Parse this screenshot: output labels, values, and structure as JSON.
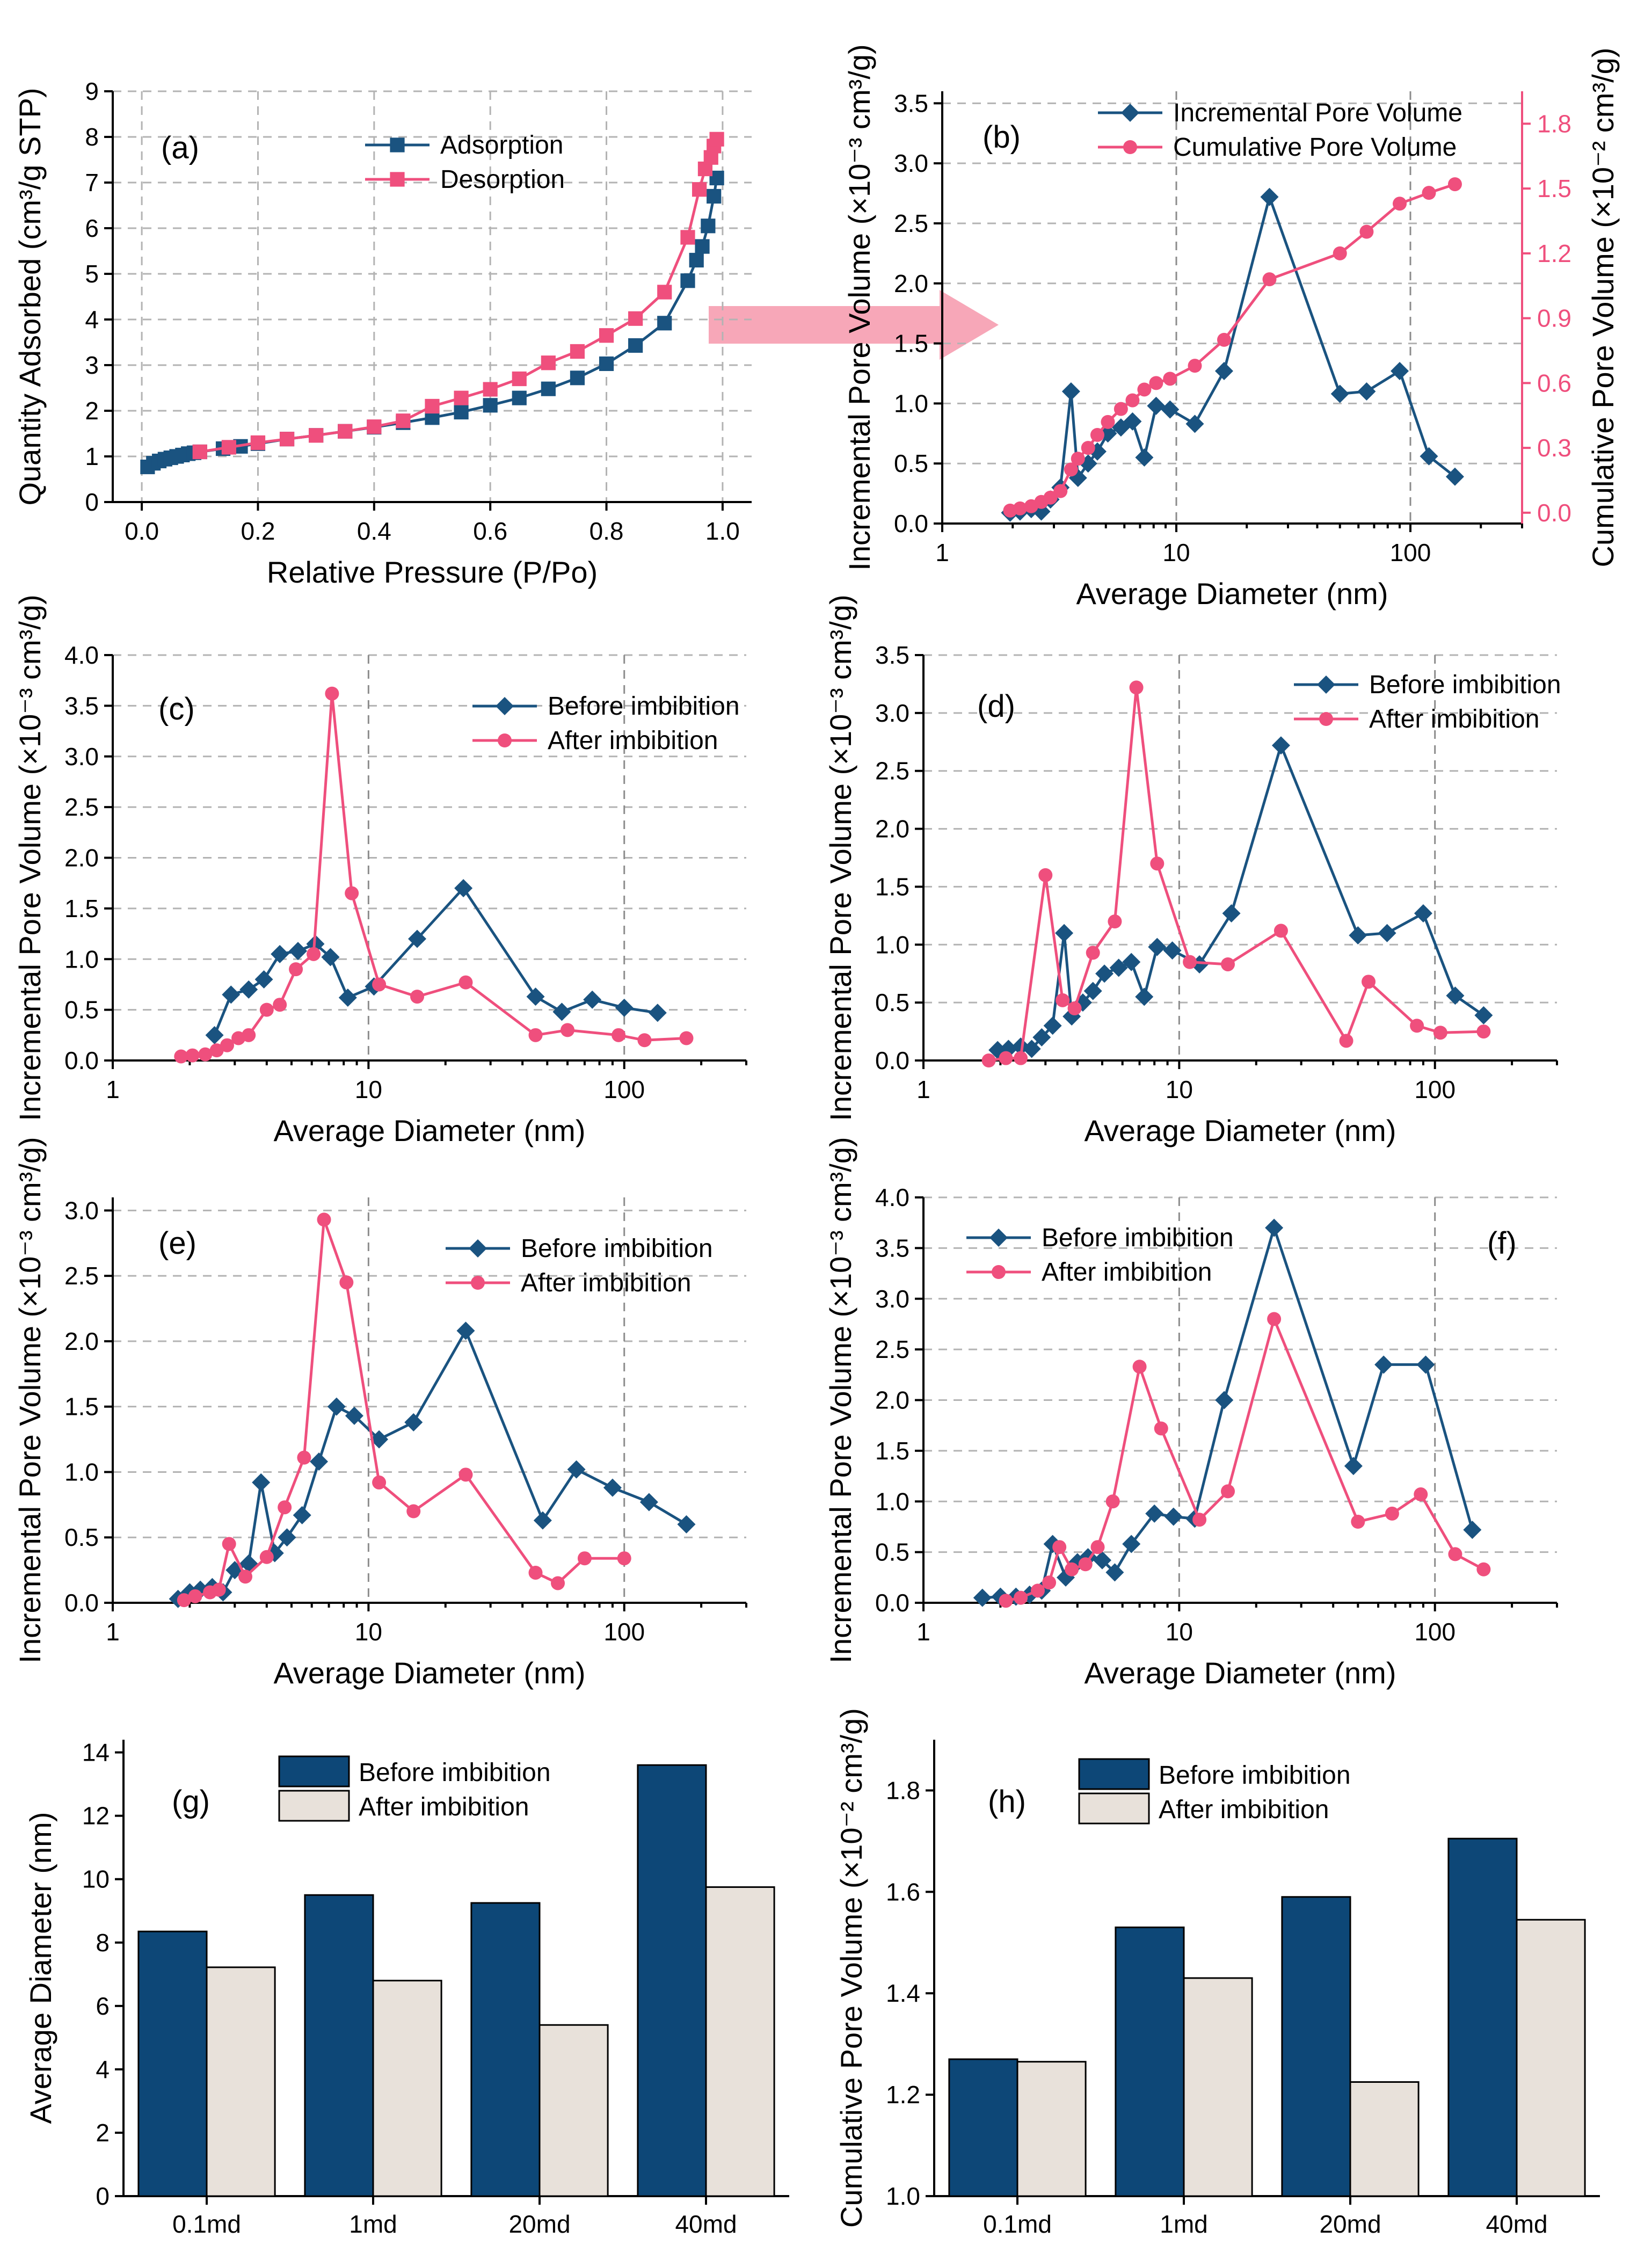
{
  "colors": {
    "blue": "#1a5380",
    "pink": "#ef4f7d",
    "bar_blue": "#0d4777",
    "bar_beige": "#e8e1da",
    "arrow": "#f7a7b8"
  },
  "chart_data": [
    {
      "id": "a",
      "type": "line",
      "label": "(a)",
      "xlabel": "Relative Pressure (P/Po)",
      "ylabel": "Quantity Adsorbed (cm³/g STP)",
      "xlim": [
        -0.05,
        1.05
      ],
      "ylim": [
        0,
        9
      ],
      "xticks": [
        0.0,
        0.2,
        0.4,
        0.6,
        0.8,
        1.0
      ],
      "xtick_labels": [
        "0.0",
        "0.2",
        "0.4",
        "0.6",
        "0.8",
        "1.0"
      ],
      "yticks": [
        0,
        1,
        2,
        3,
        4,
        5,
        6,
        7,
        8,
        9
      ],
      "ytick_labels": [
        "0",
        "1",
        "2",
        "3",
        "4",
        "5",
        "6",
        "7",
        "8",
        "9"
      ],
      "legend_position": "top-center",
      "series": [
        {
          "name": "Adsorption",
          "color": "blue",
          "marker": "square",
          "x": [
            0.01,
            0.02,
            0.03,
            0.04,
            0.05,
            0.06,
            0.07,
            0.08,
            0.09,
            0.1,
            0.14,
            0.17,
            0.2,
            0.25,
            0.3,
            0.35,
            0.4,
            0.45,
            0.5,
            0.55,
            0.6,
            0.65,
            0.7,
            0.75,
            0.8,
            0.85,
            0.9,
            0.94,
            0.955,
            0.965,
            0.975,
            0.985,
            0.99
          ],
          "y": [
            0.77,
            0.85,
            0.9,
            0.94,
            0.97,
            1.0,
            1.03,
            1.06,
            1.08,
            1.1,
            1.17,
            1.22,
            1.28,
            1.38,
            1.46,
            1.55,
            1.64,
            1.74,
            1.85,
            1.97,
            2.12,
            2.28,
            2.48,
            2.72,
            3.03,
            3.43,
            3.92,
            4.85,
            5.3,
            5.6,
            6.05,
            6.7,
            7.1
          ]
        },
        {
          "name": "Desorption",
          "color": "pink",
          "marker": "square",
          "x": [
            0.1,
            0.15,
            0.2,
            0.25,
            0.3,
            0.35,
            0.4,
            0.45,
            0.5,
            0.55,
            0.6,
            0.65,
            0.7,
            0.75,
            0.8,
            0.85,
            0.9,
            0.94,
            0.96,
            0.97,
            0.98,
            0.985,
            0.99
          ],
          "y": [
            1.1,
            1.2,
            1.3,
            1.38,
            1.46,
            1.55,
            1.65,
            1.78,
            2.1,
            2.28,
            2.47,
            2.7,
            3.05,
            3.3,
            3.65,
            4.02,
            4.6,
            5.8,
            6.85,
            7.3,
            7.55,
            7.8,
            7.95
          ]
        }
      ]
    },
    {
      "id": "b",
      "type": "line",
      "label": "(b)",
      "xlabel": "Average Diameter (nm)",
      "ylabel": "Incremental Pore Volume (×10⁻³ cm³/g)",
      "ylabel_right": "Cumulative Pore Volume (×10⁻² cm³/g)",
      "xscale": "log",
      "xlim": [
        1,
        300
      ],
      "ylim": [
        0,
        3.6
      ],
      "ylim_right": [
        -0.05,
        1.95
      ],
      "xticks": [
        1,
        10,
        100
      ],
      "xtick_labels": [
        "1",
        "10",
        "100"
      ],
      "yticks": [
        0.0,
        0.5,
        1.0,
        1.5,
        2.0,
        2.5,
        3.0,
        3.5
      ],
      "ytick_labels": [
        "0.0",
        "0.5",
        "1.0",
        "1.5",
        "2.0",
        "2.5",
        "3.0",
        "3.5"
      ],
      "yticks_right": [
        0.0,
        0.3,
        0.6,
        0.9,
        1.2,
        1.5,
        1.8
      ],
      "ytick_labels_right": [
        "0.0",
        "0.3",
        "0.6",
        "0.9",
        "1.2",
        "1.5",
        "1.8"
      ],
      "legend_position": "top-right",
      "series": [
        {
          "name": "Incremental Pore Volume",
          "color": "blue",
          "marker": "diamond",
          "axis": "left",
          "x": [
            1.95,
            2.15,
            2.4,
            2.65,
            2.9,
            3.2,
            3.55,
            3.8,
            4.2,
            4.6,
            5.1,
            5.8,
            6.5,
            7.3,
            8.2,
            9.4,
            12.0,
            16.0,
            25.0,
            50.0,
            65.0,
            90.0,
            120.0,
            155.0
          ],
          "y": [
            0.09,
            0.1,
            0.12,
            0.1,
            0.2,
            0.3,
            1.1,
            0.38,
            0.5,
            0.6,
            0.75,
            0.8,
            0.85,
            0.55,
            0.98,
            0.95,
            0.83,
            1.27,
            2.72,
            1.08,
            1.1,
            1.27,
            0.56,
            0.39
          ]
        },
        {
          "name": "Cumulative Pore Volume",
          "color": "pink",
          "marker": "circle",
          "axis": "right",
          "x": [
            1.95,
            2.15,
            2.4,
            2.65,
            2.9,
            3.2,
            3.55,
            3.8,
            4.2,
            4.6,
            5.1,
            5.8,
            6.5,
            7.3,
            8.2,
            9.4,
            12.0,
            16.0,
            25.0,
            50.0,
            65.0,
            90.0,
            120.0,
            155.0
          ],
          "y": [
            0.01,
            0.02,
            0.03,
            0.05,
            0.07,
            0.1,
            0.2,
            0.25,
            0.3,
            0.36,
            0.42,
            0.48,
            0.52,
            0.57,
            0.6,
            0.62,
            0.68,
            0.8,
            1.08,
            1.2,
            1.3,
            1.43,
            1.48,
            1.52
          ]
        }
      ]
    },
    {
      "id": "c",
      "type": "line",
      "label": "(c)",
      "xlabel": "Average Diameter (nm)",
      "ylabel": "Incremental Pore Volume (×10⁻³ cm³/g)",
      "xscale": "log",
      "xlim": [
        1,
        300
      ],
      "ylim": [
        0,
        4.0
      ],
      "xticks": [
        1,
        10,
        100
      ],
      "xtick_labels": [
        "1",
        "10",
        "100"
      ],
      "yticks": [
        0.0,
        0.5,
        1.0,
        1.5,
        2.0,
        2.5,
        3.0,
        3.5,
        4.0
      ],
      "ytick_labels": [
        "0.0",
        "0.5",
        "1.0",
        "1.5",
        "2.0",
        "2.5",
        "3.0",
        "3.5",
        "4.0"
      ],
      "legend_position": "top-right",
      "series": [
        {
          "name": "Before imbibition",
          "color": "blue",
          "marker": "diamond",
          "x": [
            2.5,
            2.9,
            3.4,
            3.9,
            4.5,
            5.3,
            6.2,
            7.1,
            8.3,
            10.5,
            15.5,
            23.5,
            45.0,
            57.0,
            75.0,
            100.0,
            135.0
          ],
          "y": [
            0.25,
            0.65,
            0.7,
            0.8,
            1.05,
            1.08,
            1.15,
            1.02,
            0.62,
            0.73,
            1.2,
            1.7,
            0.63,
            0.48,
            0.6,
            0.52,
            0.47
          ]
        },
        {
          "name": "After imbibition",
          "color": "pink",
          "marker": "circle",
          "x": [
            1.85,
            2.05,
            2.3,
            2.55,
            2.8,
            3.1,
            3.4,
            4.0,
            4.5,
            5.2,
            6.1,
            7.2,
            8.6,
            11.0,
            15.5,
            24.0,
            45.0,
            60.0,
            95.0,
            120.0,
            175.0
          ],
          "y": [
            0.04,
            0.05,
            0.06,
            0.1,
            0.15,
            0.22,
            0.25,
            0.5,
            0.55,
            0.9,
            1.05,
            3.62,
            1.65,
            0.75,
            0.63,
            0.77,
            0.25,
            0.3,
            0.25,
            0.2,
            0.22
          ]
        }
      ]
    },
    {
      "id": "d",
      "type": "line",
      "label": "(d)",
      "xlabel": "Average Diameter (nm)",
      "ylabel": "Incremental Pore Volume (×10⁻³ cm³/g)",
      "xscale": "log",
      "xlim": [
        1,
        300
      ],
      "ylim": [
        0,
        3.5
      ],
      "xticks": [
        1,
        10,
        100
      ],
      "xtick_labels": [
        "1",
        "10",
        "100"
      ],
      "yticks": [
        0.0,
        0.5,
        1.0,
        1.5,
        2.0,
        2.5,
        3.0,
        3.5
      ],
      "ytick_labels": [
        "0.0",
        "0.5",
        "1.0",
        "1.5",
        "2.0",
        "2.5",
        "3.0",
        "3.5"
      ],
      "legend_position": "top-right",
      "series": [
        {
          "name": "Before imbibition",
          "color": "blue",
          "marker": "diamond",
          "x": [
            1.95,
            2.15,
            2.4,
            2.65,
            2.9,
            3.2,
            3.55,
            3.8,
            4.2,
            4.6,
            5.1,
            5.8,
            6.5,
            7.3,
            8.2,
            9.4,
            12.0,
            16.0,
            25.0,
            50.0,
            65.0,
            90.0,
            120.0,
            155.0
          ],
          "y": [
            0.09,
            0.1,
            0.12,
            0.1,
            0.2,
            0.3,
            1.1,
            0.38,
            0.5,
            0.6,
            0.75,
            0.8,
            0.85,
            0.55,
            0.98,
            0.95,
            0.83,
            1.27,
            2.72,
            1.08,
            1.1,
            1.27,
            0.56,
            0.39
          ]
        },
        {
          "name": "After imbibition",
          "color": "pink",
          "marker": "circle",
          "x": [
            1.8,
            2.1,
            2.4,
            3.0,
            3.5,
            3.9,
            4.6,
            5.6,
            6.8,
            8.2,
            11.0,
            15.5,
            25.0,
            45.0,
            55.0,
            85.0,
            105.0,
            155.0
          ],
          "y": [
            0.0,
            0.02,
            0.02,
            1.6,
            0.52,
            0.45,
            0.93,
            1.2,
            3.22,
            1.7,
            0.85,
            0.83,
            1.12,
            0.17,
            0.68,
            0.3,
            0.24,
            0.25
          ]
        }
      ]
    },
    {
      "id": "e",
      "type": "line",
      "label": "(e)",
      "xlabel": "Average Diameter (nm)",
      "ylabel": "Incremental Pore Volume (×10⁻³ cm³/g)",
      "xscale": "log",
      "xlim": [
        1,
        300
      ],
      "ylim": [
        0,
        3.1
      ],
      "xticks": [
        1,
        10,
        100
      ],
      "xtick_labels": [
        "1",
        "10",
        "100"
      ],
      "yticks": [
        0.0,
        0.5,
        1.0,
        1.5,
        2.0,
        2.5,
        3.0
      ],
      "ytick_labels": [
        "0.0",
        "0.5",
        "1.0",
        "1.5",
        "2.0",
        "2.5",
        "3.0"
      ],
      "legend_position": "top-right",
      "series": [
        {
          "name": "Before imbibition",
          "color": "blue",
          "marker": "diamond",
          "x": [
            1.8,
            2.0,
            2.2,
            2.45,
            2.7,
            3.0,
            3.4,
            3.8,
            4.3,
            4.8,
            5.5,
            6.4,
            7.5,
            8.8,
            11.0,
            15.0,
            24.0,
            48.0,
            65.0,
            90.0,
            125.0,
            175.0
          ],
          "y": [
            0.03,
            0.08,
            0.1,
            0.12,
            0.08,
            0.25,
            0.3,
            0.92,
            0.38,
            0.5,
            0.67,
            1.08,
            1.5,
            1.43,
            1.25,
            1.38,
            2.08,
            0.63,
            1.02,
            0.88,
            0.77,
            0.6
          ]
        },
        {
          "name": "After imbibition",
          "color": "pink",
          "marker": "circle",
          "x": [
            1.9,
            2.1,
            2.4,
            2.6,
            2.85,
            3.3,
            4.0,
            4.7,
            5.6,
            6.7,
            8.2,
            11.0,
            15.0,
            24.0,
            45.0,
            55.0,
            70.0,
            100.0
          ],
          "y": [
            0.02,
            0.05,
            0.08,
            0.1,
            0.45,
            0.2,
            0.35,
            0.73,
            1.11,
            2.93,
            2.45,
            0.92,
            0.7,
            0.98,
            0.23,
            0.15,
            0.34,
            0.34
          ]
        }
      ]
    },
    {
      "id": "f",
      "type": "line",
      "label": "(f)",
      "xlabel": "Average Diameter (nm)",
      "ylabel": "Incremental Pore Volume (×10⁻³ cm³/g)",
      "xscale": "log",
      "xlim": [
        1,
        300
      ],
      "ylim": [
        0,
        4.0
      ],
      "xticks": [
        1,
        10,
        100
      ],
      "xtick_labels": [
        "1",
        "10",
        "100"
      ],
      "yticks": [
        0.0,
        0.5,
        1.0,
        1.5,
        2.0,
        2.5,
        3.0,
        3.5,
        4.0
      ],
      "ytick_labels": [
        "0.0",
        "0.5",
        "1.0",
        "1.5",
        "2.0",
        "2.5",
        "3.0",
        "3.5",
        "4.0"
      ],
      "legend_position": "top-left",
      "series": [
        {
          "name": "Before imbibition",
          "color": "blue",
          "marker": "diamond",
          "x": [
            1.7,
            2.0,
            2.3,
            2.6,
            2.9,
            3.2,
            3.6,
            4.0,
            4.4,
            5.0,
            5.6,
            6.5,
            8.0,
            9.5,
            11.5,
            15.0,
            23.5,
            48.0,
            63.0,
            92.0,
            140.0
          ],
          "y": [
            0.05,
            0.06,
            0.06,
            0.08,
            0.12,
            0.58,
            0.25,
            0.4,
            0.45,
            0.42,
            0.3,
            0.58,
            0.88,
            0.85,
            0.83,
            2.0,
            3.7,
            1.35,
            2.35,
            2.35,
            0.72
          ]
        },
        {
          "name": "After imbibition",
          "color": "pink",
          "marker": "circle",
          "x": [
            2.1,
            2.4,
            2.8,
            3.1,
            3.4,
            3.8,
            4.3,
            4.8,
            5.5,
            7.0,
            8.5,
            12.0,
            15.5,
            23.5,
            50.0,
            68.0,
            88.0,
            120.0,
            155.0
          ],
          "y": [
            0.02,
            0.05,
            0.12,
            0.2,
            0.55,
            0.33,
            0.38,
            0.55,
            1.0,
            2.33,
            1.72,
            0.82,
            1.1,
            2.8,
            0.8,
            0.88,
            1.07,
            0.48,
            0.33
          ]
        }
      ]
    },
    {
      "id": "g",
      "type": "bar",
      "label": "(g)",
      "xlabel": "",
      "ylabel": "Average Diameter (nm)",
      "categories": [
        "0.1md",
        "1md",
        "20md",
        "40md"
      ],
      "ylim": [
        0,
        14.4
      ],
      "yticks": [
        0,
        2,
        4,
        6,
        8,
        10,
        12,
        14
      ],
      "ytick_labels": [
        "0",
        "2",
        "4",
        "6",
        "8",
        "10",
        "12",
        "14"
      ],
      "legend_position": "top-center",
      "series": [
        {
          "name": "Before imbibition",
          "color": "bar_blue",
          "values": [
            8.35,
            9.5,
            9.25,
            13.6
          ]
        },
        {
          "name": "After imbibition",
          "color": "bar_beige",
          "values": [
            7.22,
            6.8,
            5.4,
            9.75
          ]
        }
      ]
    },
    {
      "id": "h",
      "type": "bar",
      "label": "(h)",
      "xlabel": "",
      "ylabel": "Cumulative Pore Volume (×10⁻² cm³/g)",
      "categories": [
        "0.1md",
        "1md",
        "20md",
        "40md"
      ],
      "ylim": [
        1.0,
        1.9
      ],
      "yticks": [
        1.0,
        1.2,
        1.4,
        1.6,
        1.8
      ],
      "ytick_labels": [
        "1.0",
        "1.2",
        "1.4",
        "1.6",
        "1.8"
      ],
      "legend_position": "top-center",
      "series": [
        {
          "name": "Before imbibition",
          "color": "bar_blue",
          "values": [
            1.27,
            1.53,
            1.59,
            1.705
          ]
        },
        {
          "name": "After imbibition",
          "color": "bar_beige",
          "values": [
            1.265,
            1.43,
            1.225,
            1.545
          ]
        }
      ]
    }
  ]
}
